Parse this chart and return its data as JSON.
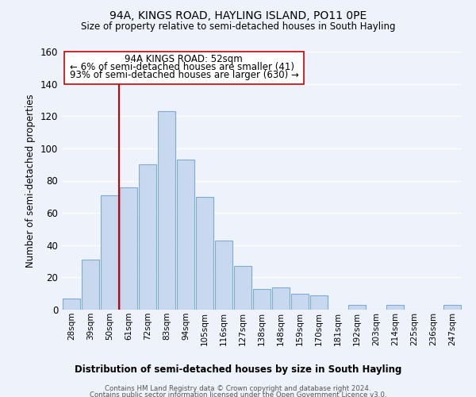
{
  "title": "94A, KINGS ROAD, HAYLING ISLAND, PO11 0PE",
  "subtitle": "Size of property relative to semi-detached houses in South Hayling",
  "xlabel": "Distribution of semi-detached houses by size in South Hayling",
  "ylabel": "Number of semi-detached properties",
  "categories": [
    "28sqm",
    "39sqm",
    "50sqm",
    "61sqm",
    "72sqm",
    "83sqm",
    "94sqm",
    "105sqm",
    "116sqm",
    "127sqm",
    "138sqm",
    "148sqm",
    "159sqm",
    "170sqm",
    "181sqm",
    "192sqm",
    "203sqm",
    "214sqm",
    "225sqm",
    "236sqm",
    "247sqm"
  ],
  "values": [
    7,
    31,
    71,
    76,
    90,
    123,
    93,
    70,
    43,
    27,
    13,
    14,
    10,
    9,
    0,
    3,
    0,
    3,
    0,
    0,
    3
  ],
  "bar_color": "#c8d9ef",
  "bar_edge_color": "#7aadd4",
  "highlight_line_color": "#cc0000",
  "annotation_title": "94A KINGS ROAD: 52sqm",
  "annotation_line1": "← 6% of semi-detached houses are smaller (41)",
  "annotation_line2": "93% of semi-detached houses are larger (630) →",
  "annotation_box_color": "#ffffff",
  "annotation_box_edge": "#cc0000",
  "ylim": [
    0,
    160
  ],
  "yticks": [
    0,
    20,
    40,
    60,
    80,
    100,
    120,
    140,
    160
  ],
  "footer_line1": "Contains HM Land Registry data © Crown copyright and database right 2024.",
  "footer_line2": "Contains public sector information licensed under the Open Government Licence v3.0.",
  "bg_color": "#eef2fa",
  "plot_bg_color": "#eef2fa",
  "grid_color": "#ffffff"
}
